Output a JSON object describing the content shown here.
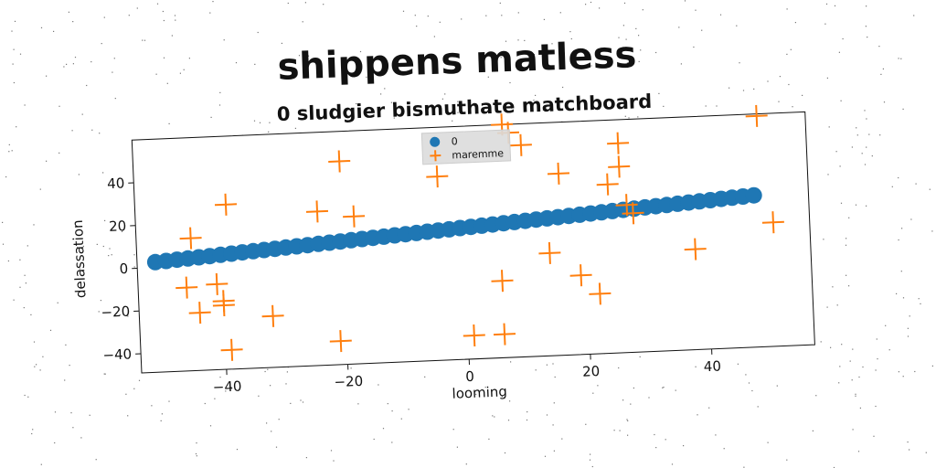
{
  "chart_data": {
    "type": "scatter",
    "title": "shippens matless",
    "subtitle": "0 sludgier bismuthate matchboard",
    "xlabel": "looming",
    "ylabel": "delassation",
    "xlim": [
      -54,
      57
    ],
    "ylim": [
      -49,
      60
    ],
    "xticks": [
      -40,
      -20,
      0,
      20,
      40
    ],
    "yticks": [
      -40,
      -20,
      0,
      20,
      40
    ],
    "xtick_labels": [
      "−40",
      "−20",
      "0",
      "20",
      "40"
    ],
    "ytick_labels": [
      "−40",
      "−20",
      "0",
      "20",
      "40"
    ],
    "grid": false,
    "legend_position": "top-center",
    "series": [
      {
        "name": "0",
        "marker": "circle",
        "color": "#1f77b4",
        "x": [
          -51,
          -49.2,
          -47.4,
          -45.6,
          -43.8,
          -42,
          -40.2,
          -38.4,
          -36.6,
          -34.8,
          -33,
          -31.2,
          -29.4,
          -27.6,
          -25.8,
          -24,
          -22.2,
          -20.4,
          -18.6,
          -16.8,
          -15,
          -13.2,
          -11.4,
          -9.6,
          -7.8,
          -6,
          -4.2,
          -2.4,
          -0.6,
          1.2,
          3,
          4.8,
          6.6,
          8.4,
          10.2,
          12,
          13.8,
          15.6,
          17.4,
          19.2,
          21,
          22.8,
          24.6,
          26.4,
          28.2,
          30,
          31.8,
          33.6,
          35.4,
          37.2,
          39,
          40.8,
          42.6,
          44.4,
          46.2,
          48
        ],
        "y": [
          2.5,
          2.85,
          3.21,
          3.56,
          3.92,
          4.27,
          4.63,
          4.98,
          5.34,
          5.69,
          6.05,
          6.4,
          6.76,
          7.11,
          7.47,
          7.82,
          8.18,
          8.53,
          8.89,
          9.24,
          9.6,
          9.95,
          10.31,
          10.66,
          11.02,
          11.37,
          11.73,
          12.08,
          12.44,
          12.79,
          13.15,
          13.5,
          13.86,
          14.21,
          14.57,
          14.92,
          15.28,
          15.63,
          15.99,
          16.34,
          16.7,
          17.05,
          17.41,
          17.76,
          18.12,
          18.47,
          18.83,
          19.18,
          19.54,
          19.89,
          20.25,
          20.6,
          20.96,
          21.31,
          21.67,
          22
        ]
      },
      {
        "name": "maremme",
        "marker": "plus",
        "color": "#ff7f0e",
        "x": [
          -45,
          -46,
          -44,
          -41,
          -40,
          -40,
          -39,
          -39,
          -32,
          -24,
          -20,
          -21,
          -18,
          -4,
          1,
          6,
          6,
          7,
          8,
          10,
          14,
          16,
          19,
          22,
          24,
          26,
          26,
          27,
          28,
          38,
          49,
          51
        ],
        "y": [
          13,
          -10,
          -22,
          -9,
          -17,
          -19,
          -40,
          28,
          -25,
          23,
          46,
          -38,
          20,
          37,
          -38,
          -38,
          -13,
          60,
          56,
          50,
          -1,
          36,
          -12,
          -21,
          30,
          49,
          38,
          20,
          16,
          -2,
          59,
          9
        ]
      }
    ]
  }
}
